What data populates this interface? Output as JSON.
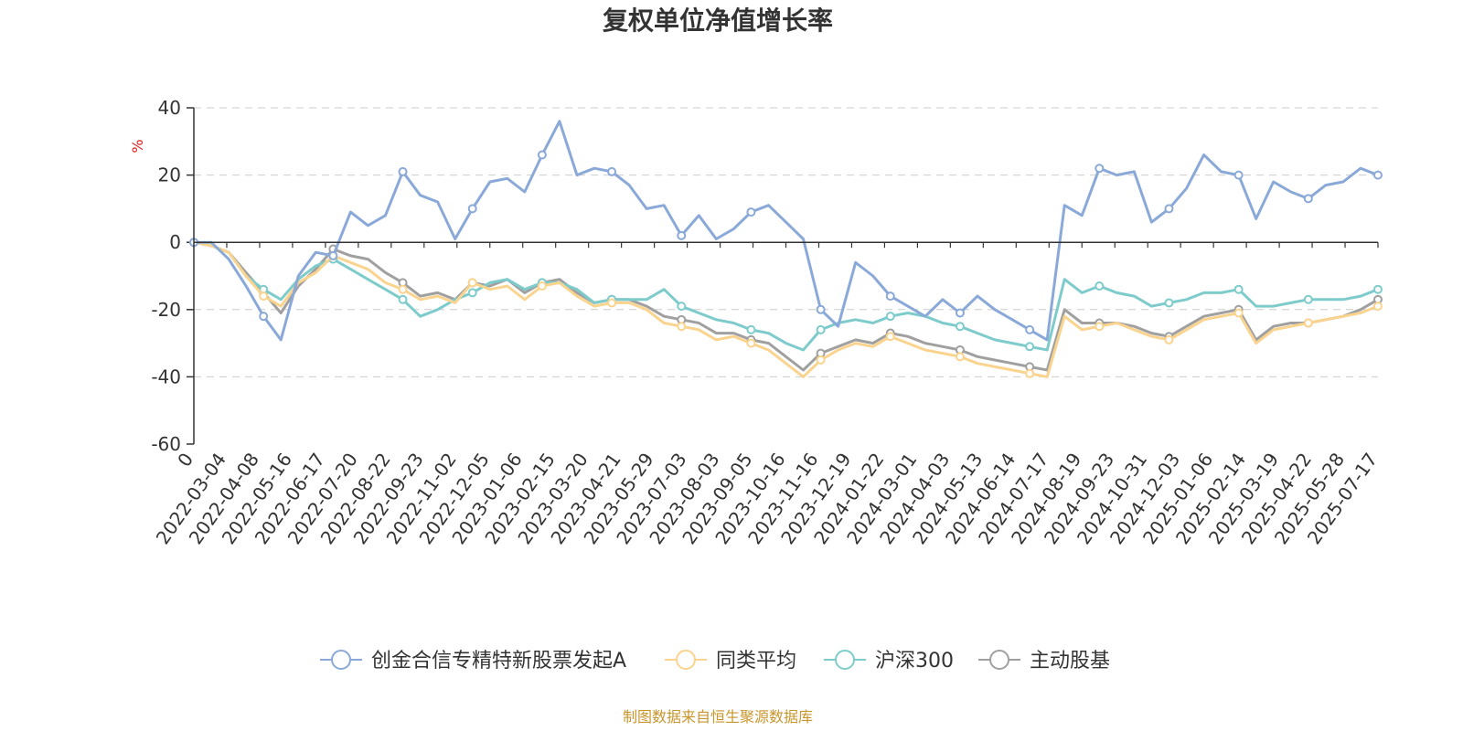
{
  "chart_data": {
    "type": "line",
    "title": "复权单位净值增长率",
    "ylabel": "%",
    "ylim": [
      -60,
      40
    ],
    "yticks": [
      40,
      20,
      0,
      -20,
      -40,
      -60
    ],
    "grid": true,
    "legend_position": "bottom",
    "source": "制图数据来自恒生聚源数据库",
    "x_tick_labels": [
      "0",
      "2022-03-04",
      "2022-04-08",
      "2022-05-16",
      "2022-06-17",
      "2022-07-20",
      "2022-08-22",
      "2022-09-23",
      "2022-11-02",
      "2022-12-05",
      "2023-01-06",
      "2023-02-15",
      "2023-03-20",
      "2023-04-21",
      "2023-05-29",
      "2023-07-03",
      "2023-08-03",
      "2023-09-05",
      "2023-10-16",
      "2023-11-16",
      "2023-12-19",
      "2024-01-22",
      "2024-03-01",
      "2024-04-03",
      "2024-05-13",
      "2024-06-14",
      "2024-07-17",
      "2024-08-19",
      "2024-09-23",
      "2024-10-31",
      "2024-12-03",
      "2025-01-06",
      "2025-02-14",
      "2025-03-19",
      "2025-04-22",
      "2025-05-28",
      "2025-07-17"
    ],
    "series": [
      {
        "name": "创金合信专精特新股票发起A",
        "color": "#8aa9d8",
        "values": [
          0,
          0,
          -5,
          -13,
          -22,
          -29,
          -10,
          -3,
          -4,
          9,
          5,
          8,
          21,
          14,
          12,
          1,
          10,
          18,
          19,
          15,
          26,
          36,
          20,
          22,
          21,
          17,
          10,
          11,
          2,
          8,
          1,
          4,
          9,
          11,
          6,
          1,
          -20,
          -25,
          -6,
          -10,
          -16,
          -19,
          -22,
          -17,
          -21,
          -16,
          -20,
          -23,
          -26,
          -29,
          11,
          8,
          22,
          20,
          21,
          6,
          10,
          16,
          26,
          21,
          20,
          7,
          18,
          15,
          13,
          17,
          18,
          22,
          20
        ]
      },
      {
        "name": "同类平均",
        "color": "#fad48e",
        "values": [
          0,
          -1,
          -3,
          -10,
          -16,
          -19,
          -12,
          -9,
          -4,
          -6,
          -8,
          -12,
          -14,
          -17,
          -16,
          -18,
          -12,
          -14,
          -13,
          -17,
          -13,
          -12,
          -16,
          -19,
          -18,
          -18,
          -20,
          -24,
          -25,
          -26,
          -29,
          -28,
          -30,
          -32,
          -36,
          -40,
          -35,
          -32,
          -30,
          -31,
          -28,
          -30,
          -32,
          -33,
          -34,
          -36,
          -37,
          -38,
          -39,
          -40,
          -22,
          -26,
          -25,
          -24,
          -26,
          -28,
          -29,
          -26,
          -23,
          -22,
          -21,
          -30,
          -26,
          -25,
          -24,
          -23,
          -22,
          -21,
          -19
        ]
      },
      {
        "name": "沪深300",
        "color": "#7ecbcc",
        "values": [
          0,
          -1,
          -3,
          -10,
          -14,
          -17,
          -11,
          -7,
          -5,
          -8,
          -11,
          -14,
          -17,
          -22,
          -20,
          -17,
          -15,
          -12,
          -11,
          -14,
          -12,
          -12,
          -14,
          -18,
          -17,
          -17,
          -17,
          -14,
          -19,
          -21,
          -23,
          -24,
          -26,
          -27,
          -30,
          -32,
          -26,
          -24,
          -23,
          -24,
          -22,
          -21,
          -22,
          -24,
          -25,
          -27,
          -29,
          -30,
          -31,
          -32,
          -11,
          -15,
          -13,
          -15,
          -16,
          -19,
          -18,
          -17,
          -15,
          -15,
          -14,
          -19,
          -19,
          -18,
          -17,
          -17,
          -17,
          -16,
          -14
        ]
      },
      {
        "name": "主动股基",
        "color": "#a0a0a0",
        "values": [
          0,
          -1,
          -3,
          -9,
          -15,
          -21,
          -13,
          -8,
          -2,
          -4,
          -5,
          -9,
          -12,
          -16,
          -15,
          -17,
          -12,
          -13,
          -11,
          -15,
          -12,
          -11,
          -15,
          -18,
          -17,
          -17,
          -19,
          -22,
          -23,
          -24,
          -27,
          -27,
          -29,
          -30,
          -34,
          -38,
          -33,
          -31,
          -29,
          -30,
          -27,
          -28,
          -30,
          -31,
          -32,
          -34,
          -35,
          -36,
          -37,
          -38,
          -20,
          -24,
          -24,
          -24,
          -25,
          -27,
          -28,
          -25,
          -22,
          -21,
          -20,
          -29,
          -25,
          -24,
          -24,
          -23,
          -22,
          -20,
          -17
        ]
      }
    ]
  }
}
